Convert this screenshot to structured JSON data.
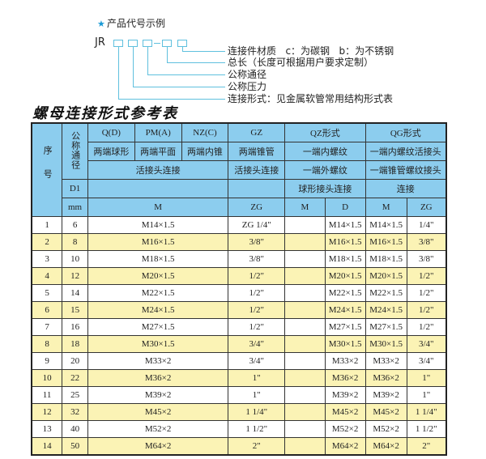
{
  "example": {
    "heading": "产品代号示例",
    "code_prefix": "JR",
    "labels": [
      "连接件材质   c：为碳钢   b：为不锈钢",
      "总长（长度可根据用户要求定制）",
      "公称通径",
      "公称压力",
      "连接形式：见金属软管常用结构形式表"
    ]
  },
  "table_title": "螺母连接形式参考表",
  "header": {
    "seq": "序号",
    "nominal_dia": "公称通径",
    "qd": "Q(D)",
    "pma": "PM(A)",
    "nzc": "NZ(C)",
    "gz": "GZ",
    "qz": "QZ形式",
    "qg": "QG形式",
    "qd_desc": "两端球形",
    "pma_desc": "两端平面",
    "nzc_desc": "两端内锥",
    "gz_desc": "两端锥管",
    "qz_desc1": "一端内螺纹",
    "qg_desc1": "一端内螺纹活接头",
    "union_conn": "活接头连接",
    "gz_conn": "活接头连接",
    "qz_desc2": "一端外螺纹",
    "qg_desc2": "一端锥管螺纹接头",
    "d1": "D1",
    "qz_desc3": "球形接头连接",
    "qg_desc3": "连接",
    "mm": "mm",
    "m": "M",
    "zg": "ZG",
    "qz_m": "M",
    "qz_d": "D",
    "qg_m": "M",
    "qg_zg": "ZG"
  },
  "rows": [
    {
      "no": "1",
      "dn": "6",
      "m": "M14×1.5",
      "zg": "ZG 1/4\"",
      "qz_m": "",
      "qz_d": "M14×1.5",
      "qg_m": "M14×1.5",
      "qg_zg": "1/4\""
    },
    {
      "no": "2",
      "dn": "8",
      "m": "M16×1.5",
      "zg": "3/8\"",
      "qz_m": "",
      "qz_d": "M16×1.5",
      "qg_m": "M16×1.5",
      "qg_zg": "3/8\""
    },
    {
      "no": "3",
      "dn": "10",
      "m": "M18×1.5",
      "zg": "3/8\"",
      "qz_m": "",
      "qz_d": "M18×1.5",
      "qg_m": "M18×1.5",
      "qg_zg": "3/8\""
    },
    {
      "no": "4",
      "dn": "12",
      "m": "M20×1.5",
      "zg": "1/2\"",
      "qz_m": "",
      "qz_d": "M20×1.5",
      "qg_m": "M20×1.5",
      "qg_zg": "1/2\""
    },
    {
      "no": "5",
      "dn": "14",
      "m": "M22×1.5",
      "zg": "1/2\"",
      "qz_m": "",
      "qz_d": "M22×1.5",
      "qg_m": "M22×1.5",
      "qg_zg": "1/2\""
    },
    {
      "no": "6",
      "dn": "15",
      "m": "M24×1.5",
      "zg": "1/2\"",
      "qz_m": "",
      "qz_d": "M24×1.5",
      "qg_m": "M24×1.5",
      "qg_zg": "1/2\""
    },
    {
      "no": "7",
      "dn": "16",
      "m": "M27×1.5",
      "zg": "1/2\"",
      "qz_m": "",
      "qz_d": "M27×1.5",
      "qg_m": "M27×1.5",
      "qg_zg": "1/2\""
    },
    {
      "no": "8",
      "dn": "18",
      "m": "M30×1.5",
      "zg": "3/4\"",
      "qz_m": "",
      "qz_d": "M30×1.5",
      "qg_m": "M30×1.5",
      "qg_zg": "3/4\""
    },
    {
      "no": "9",
      "dn": "20",
      "m": "M33×2",
      "zg": "3/4\"",
      "qz_m": "",
      "qz_d": "M33×2",
      "qg_m": "M33×2",
      "qg_zg": "3/4\""
    },
    {
      "no": "10",
      "dn": "22",
      "m": "M36×2",
      "zg": "1\"",
      "qz_m": "",
      "qz_d": "M36×2",
      "qg_m": "M36×2",
      "qg_zg": "1\""
    },
    {
      "no": "11",
      "dn": "25",
      "m": "M39×2",
      "zg": "1\"",
      "qz_m": "",
      "qz_d": "M39×2",
      "qg_m": "M39×2",
      "qg_zg": "1\""
    },
    {
      "no": "12",
      "dn": "32",
      "m": "M45×2",
      "zg": "1 1/4\"",
      "qz_m": "",
      "qz_d": "M45×2",
      "qg_m": "M45×2",
      "qg_zg": "1 1/4\""
    },
    {
      "no": "13",
      "dn": "40",
      "m": "M52×2",
      "zg": "1 1/2\"",
      "qz_m": "",
      "qz_d": "M52×2",
      "qg_m": "M52×2",
      "qg_zg": "1 1/2\""
    },
    {
      "no": "14",
      "dn": "50",
      "m": "M64×2",
      "zg": "2\"",
      "qz_m": "",
      "qz_d": "M64×2",
      "qg_m": "M64×2",
      "qg_zg": "2\""
    }
  ],
  "colors": {
    "header": "#8ccdee",
    "stripe": "#fbf3b5",
    "accent": "#1a9ad6"
  }
}
